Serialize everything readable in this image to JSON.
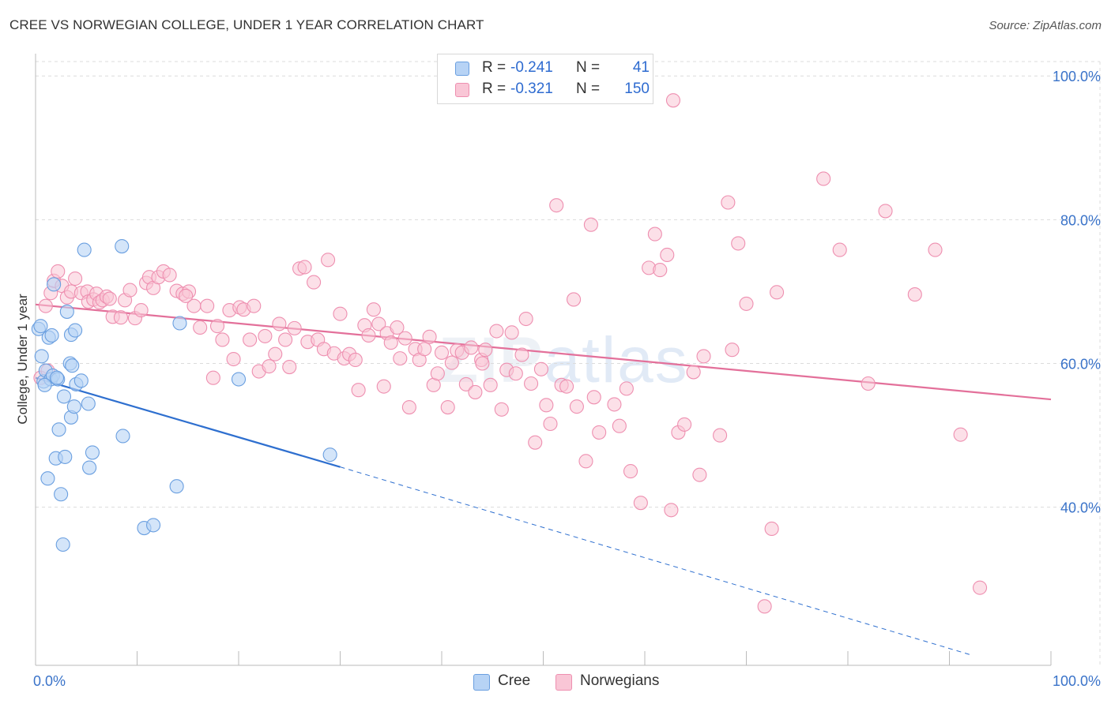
{
  "title": "CREE VS NORWEGIAN COLLEGE, UNDER 1 YEAR CORRELATION CHART",
  "source": "Source: ZipAtlas.com",
  "watermark": {
    "bold": "ZIP",
    "light": "atlas"
  },
  "colors": {
    "cree_fill": "#b7d3f5",
    "cree_stroke": "#6a9fe0",
    "cree_line": "#2e6fcf",
    "norw_fill": "#f9c6d6",
    "norw_stroke": "#ee8fb0",
    "norw_line": "#e3709a",
    "accent_text": "#3a73c9",
    "grid": "#dcdcdc"
  },
  "legend": {
    "cree": {
      "r_label": "R = ",
      "r_value": "-0.241",
      "n_label": "N = ",
      "n_value": "41"
    },
    "norwegians": {
      "r_label": "R = ",
      "r_value": "-0.321",
      "n_label": "N = ",
      "n_value": "150"
    }
  },
  "bottom_legend": {
    "cree": "Cree",
    "norwegians": "Norwegians"
  },
  "chart_data": {
    "type": "scatter",
    "xlabel": "",
    "ylabel": "College, Under 1 year",
    "xlim": [
      0,
      100
    ],
    "ylim": [
      18,
      102
    ],
    "x_tick_labels": [
      {
        "value": 0,
        "label": "0.0%"
      },
      {
        "value": 100,
        "label": "100.0%"
      }
    ],
    "y_tick_labels": [
      {
        "value": 100,
        "label": "100.0%"
      },
      {
        "value": 80,
        "label": "80.0%"
      },
      {
        "value": 60,
        "label": "60.0%"
      },
      {
        "value": 40,
        "label": "40.0%"
      }
    ],
    "grid": true,
    "legend_position": "top-center",
    "series": [
      {
        "name": "Cree",
        "trend": {
          "x": [
            0,
            30
          ],
          "y": [
            58,
            45.6
          ],
          "dashed_extension_to": [
            92,
            19.5
          ]
        },
        "points": [
          [
            0.3,
            64.8
          ],
          [
            0.5,
            65.2
          ],
          [
            0.6,
            61.0
          ],
          [
            0.8,
            57.5
          ],
          [
            1.0,
            59.0
          ],
          [
            1.3,
            63.6
          ],
          [
            1.5,
            57.8
          ],
          [
            1.7,
            58.3
          ],
          [
            1.6,
            63.9
          ],
          [
            1.8,
            71.0
          ],
          [
            2.0,
            46.8
          ],
          [
            2.2,
            57.8
          ],
          [
            2.3,
            50.8
          ],
          [
            2.5,
            41.8
          ],
          [
            2.7,
            34.8
          ],
          [
            2.8,
            55.4
          ],
          [
            2.9,
            47.0
          ],
          [
            3.1,
            67.2
          ],
          [
            3.4,
            60.0
          ],
          [
            3.5,
            52.5
          ],
          [
            3.5,
            64.0
          ],
          [
            3.6,
            59.7
          ],
          [
            3.8,
            54.0
          ],
          [
            3.9,
            64.6
          ],
          [
            4.0,
            57.1
          ],
          [
            4.5,
            57.6
          ],
          [
            4.8,
            75.8
          ],
          [
            5.2,
            54.4
          ],
          [
            5.3,
            45.5
          ],
          [
            5.6,
            47.6
          ],
          [
            8.5,
            76.3
          ],
          [
            8.6,
            49.9
          ],
          [
            10.7,
            37.1
          ],
          [
            11.6,
            37.5
          ],
          [
            13.9,
            42.9
          ],
          [
            14.2,
            65.6
          ],
          [
            20.0,
            57.8
          ],
          [
            29.0,
            47.3
          ],
          [
            1.2,
            44.0
          ],
          [
            0.9,
            57.0
          ],
          [
            2.1,
            58.0
          ]
        ]
      },
      {
        "name": "Norwegians",
        "trend": {
          "x": [
            0,
            100
          ],
          "y": [
            68.2,
            55.0
          ]
        },
        "points": [
          [
            0.5,
            58.0
          ],
          [
            1.0,
            68.0
          ],
          [
            1.2,
            59.0
          ],
          [
            1.5,
            69.8
          ],
          [
            1.8,
            71.5
          ],
          [
            2.2,
            72.8
          ],
          [
            2.6,
            70.8
          ],
          [
            3.1,
            69.2
          ],
          [
            3.5,
            70.0
          ],
          [
            3.9,
            71.8
          ],
          [
            4.5,
            69.8
          ],
          [
            5.1,
            70.0
          ],
          [
            5.2,
            68.6
          ],
          [
            5.7,
            68.9
          ],
          [
            6.0,
            69.7
          ],
          [
            6.3,
            68.5
          ],
          [
            6.6,
            68.8
          ],
          [
            7.0,
            69.3
          ],
          [
            7.3,
            69.0
          ],
          [
            7.6,
            66.5
          ],
          [
            8.4,
            66.4
          ],
          [
            8.8,
            68.8
          ],
          [
            9.3,
            70.2
          ],
          [
            9.8,
            66.3
          ],
          [
            10.4,
            67.4
          ],
          [
            10.9,
            71.2
          ],
          [
            11.2,
            72.0
          ],
          [
            11.6,
            70.5
          ],
          [
            12.1,
            72.0
          ],
          [
            12.6,
            72.8
          ],
          [
            13.2,
            72.3
          ],
          [
            13.9,
            70.1
          ],
          [
            14.5,
            69.7
          ],
          [
            15.1,
            70.0
          ],
          [
            15.6,
            68.0
          ],
          [
            16.2,
            65.0
          ],
          [
            16.9,
            68.0
          ],
          [
            17.5,
            58.0
          ],
          [
            17.9,
            65.2
          ],
          [
            18.4,
            63.3
          ],
          [
            19.1,
            67.4
          ],
          [
            19.5,
            60.6
          ],
          [
            20.1,
            67.8
          ],
          [
            20.5,
            67.5
          ],
          [
            21.1,
            63.3
          ],
          [
            21.5,
            68.0
          ],
          [
            22.0,
            58.9
          ],
          [
            22.6,
            63.8
          ],
          [
            23.0,
            59.6
          ],
          [
            23.6,
            61.3
          ],
          [
            24.0,
            65.5
          ],
          [
            24.6,
            63.3
          ],
          [
            25.0,
            59.5
          ],
          [
            25.5,
            64.9
          ],
          [
            26.0,
            73.2
          ],
          [
            26.5,
            73.4
          ],
          [
            26.8,
            63.0
          ],
          [
            27.4,
            71.3
          ],
          [
            27.8,
            63.3
          ],
          [
            28.4,
            62.0
          ],
          [
            28.8,
            74.4
          ],
          [
            29.4,
            61.4
          ],
          [
            30.0,
            66.9
          ],
          [
            30.4,
            60.7
          ],
          [
            30.9,
            61.3
          ],
          [
            31.5,
            60.5
          ],
          [
            31.8,
            56.3
          ],
          [
            32.4,
            65.3
          ],
          [
            32.8,
            63.9
          ],
          [
            33.3,
            67.5
          ],
          [
            33.8,
            65.5
          ],
          [
            34.3,
            56.8
          ],
          [
            34.6,
            64.2
          ],
          [
            35.0,
            62.9
          ],
          [
            35.6,
            65.0
          ],
          [
            35.9,
            60.7
          ],
          [
            36.4,
            63.5
          ],
          [
            36.8,
            53.9
          ],
          [
            37.4,
            62.0
          ],
          [
            37.8,
            60.5
          ],
          [
            38.3,
            62.0
          ],
          [
            38.8,
            63.7
          ],
          [
            39.2,
            57.0
          ],
          [
            39.6,
            58.6
          ],
          [
            40.0,
            61.5
          ],
          [
            40.6,
            53.9
          ],
          [
            41.0,
            60.1
          ],
          [
            41.5,
            61.8
          ],
          [
            42.0,
            61.5
          ],
          [
            42.4,
            57.1
          ],
          [
            42.9,
            62.2
          ],
          [
            43.3,
            56.0
          ],
          [
            43.9,
            60.5
          ],
          [
            44.3,
            61.9
          ],
          [
            44.8,
            57.0
          ],
          [
            45.4,
            64.5
          ],
          [
            45.9,
            53.6
          ],
          [
            46.4,
            59.1
          ],
          [
            46.9,
            64.3
          ],
          [
            47.3,
            58.6
          ],
          [
            47.9,
            61.2
          ],
          [
            48.3,
            66.2
          ],
          [
            48.8,
            57.2
          ],
          [
            49.2,
            49.0
          ],
          [
            49.8,
            59.2
          ],
          [
            50.3,
            54.2
          ],
          [
            50.7,
            51.6
          ],
          [
            51.3,
            82.0
          ],
          [
            51.8,
            57.0
          ],
          [
            52.3,
            56.8
          ],
          [
            53.0,
            68.9
          ],
          [
            53.3,
            54.0
          ],
          [
            54.2,
            46.4
          ],
          [
            54.7,
            79.3
          ],
          [
            55.0,
            55.3
          ],
          [
            55.5,
            50.4
          ],
          [
            57.0,
            54.3
          ],
          [
            57.5,
            51.3
          ],
          [
            58.2,
            56.5
          ],
          [
            58.6,
            45.0
          ],
          [
            59.6,
            40.6
          ],
          [
            60.4,
            73.3
          ],
          [
            61.0,
            78.0
          ],
          [
            61.5,
            73.0
          ],
          [
            62.2,
            75.1
          ],
          [
            62.6,
            39.6
          ],
          [
            63.3,
            50.4
          ],
          [
            63.9,
            51.5
          ],
          [
            64.8,
            58.8
          ],
          [
            65.4,
            44.5
          ],
          [
            65.8,
            61.0
          ],
          [
            67.4,
            50.0
          ],
          [
            68.2,
            82.4
          ],
          [
            68.6,
            61.9
          ],
          [
            69.2,
            76.7
          ],
          [
            70.0,
            68.3
          ],
          [
            72.5,
            37.0
          ],
          [
            73.0,
            69.9
          ],
          [
            77.6,
            85.7
          ],
          [
            79.2,
            75.8
          ],
          [
            82.0,
            57.2
          ],
          [
            83.7,
            81.2
          ],
          [
            86.6,
            69.6
          ],
          [
            88.6,
            75.8
          ],
          [
            91.1,
            50.1
          ],
          [
            93.0,
            28.8
          ],
          [
            71.8,
            26.2
          ],
          [
            62.8,
            96.6
          ],
          [
            14.8,
            69.4
          ],
          [
            44.0,
            60.0
          ]
        ]
      }
    ]
  }
}
